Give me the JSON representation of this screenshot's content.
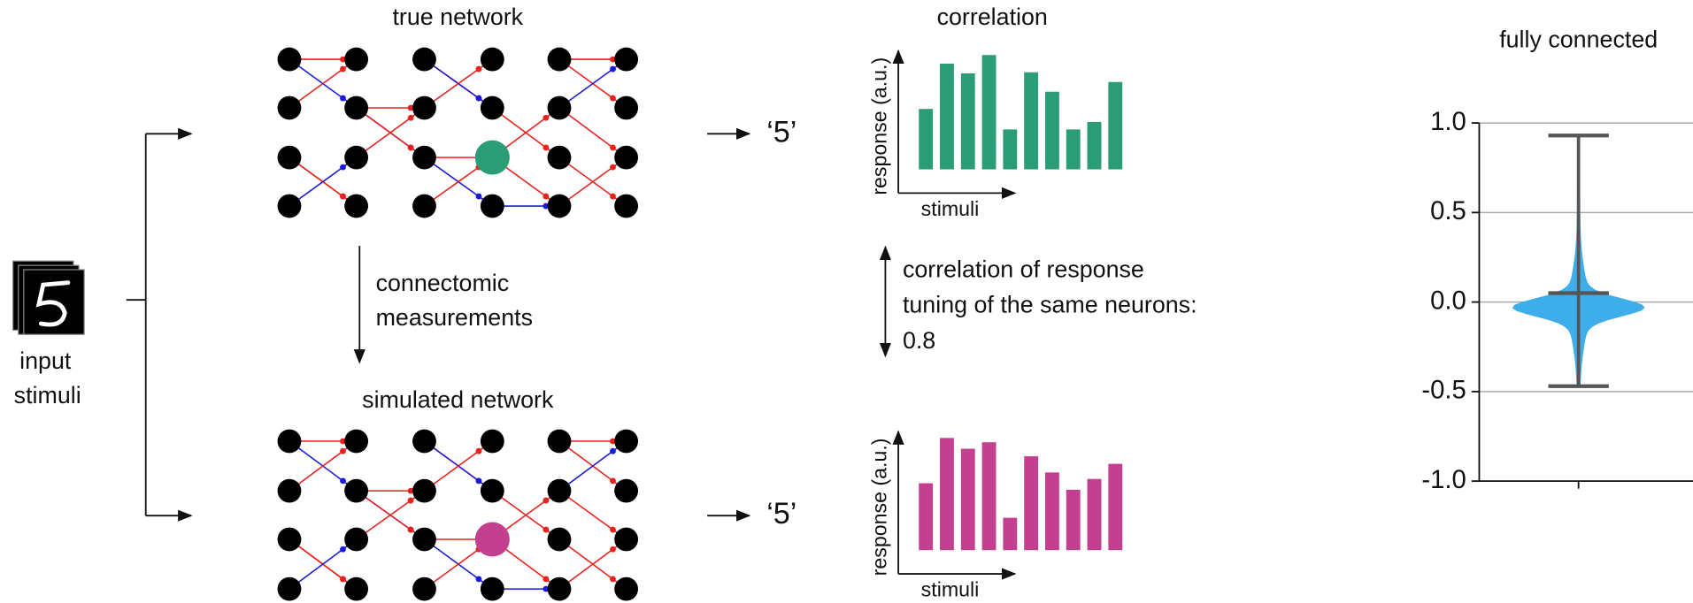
{
  "input_label": [
    "input",
    "stimuli"
  ],
  "true_network": {
    "title": "true network",
    "output": "‘5’"
  },
  "simulated_network": {
    "title": "simulated network",
    "output": "‘5’"
  },
  "connectomic_label": [
    "connectomic",
    "measurements"
  ],
  "correlation_note": [
    "correlation of response",
    "tuning of the same neurons:",
    0.8
  ],
  "chart_data": [
    {
      "type": "bar",
      "title": "correlation",
      "ylabel": "response (a.u.)",
      "xlabel": "stimuli",
      "color": "#2a9d77",
      "values": [
        56,
        98,
        89,
        106,
        37,
        90,
        72,
        37,
        44,
        81
      ]
    },
    {
      "type": "bar",
      "ylabel": "response (a.u.)",
      "xlabel": "stimuli",
      "color": "#c2408f",
      "values": [
        62,
        104,
        94,
        100,
        30,
        87,
        72,
        56,
        66,
        80
      ]
    },
    {
      "type": "violin",
      "title": "fully connected",
      "color": "#3daee9",
      "ylim": [
        -1,
        1
      ],
      "yticks": [
        {
          "value": 1,
          "label": "1.0"
        },
        0.5,
        {
          "value": 0,
          "label": "0.0"
        },
        -0.5,
        {
          "value": -1,
          "label": "-1.0"
        }
      ],
      "grid": true,
      "max": 0.93,
      "median": 0.05,
      "min": -0.47
    }
  ]
}
